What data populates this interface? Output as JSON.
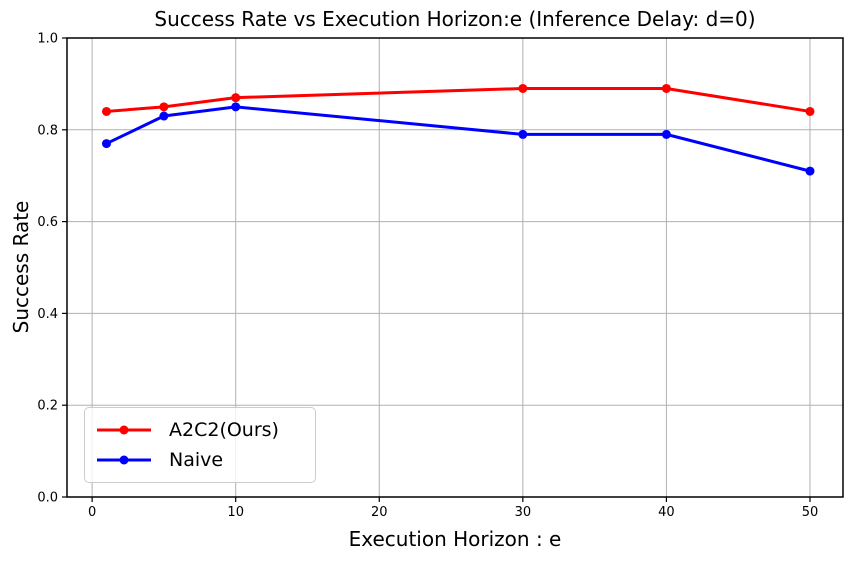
{
  "chart_data": {
    "type": "line",
    "title": "Success Rate vs Execution Horizon:e (Inference Delay: d=0)",
    "xlabel": "Execution Horizon : e",
    "ylabel": "Success Rate",
    "x": [
      1,
      5,
      10,
      30,
      40,
      50
    ],
    "series": [
      {
        "name": "A2C2(Ours)",
        "color": "#ff0000",
        "values": [
          0.84,
          0.85,
          0.87,
          0.89,
          0.89,
          0.84
        ]
      },
      {
        "name": "Naive",
        "color": "#0000ff",
        "values": [
          0.77,
          0.83,
          0.85,
          0.79,
          0.79,
          0.71
        ]
      }
    ],
    "xticks": [
      "0",
      "10",
      "20",
      "30",
      "40",
      "50"
    ],
    "yticks": [
      "0.0",
      "0.2",
      "0.4",
      "0.6",
      "0.8",
      "1.0"
    ],
    "xlim": [
      -1.75,
      52.3
    ],
    "ylim": [
      0.0,
      1.0
    ],
    "grid": true,
    "legend_position": "lower left",
    "marker": "circle",
    "colors": {
      "grid": "#b0b0b0",
      "spine": "#000000",
      "text": "#000000",
      "legend_border": "#cccccc",
      "background": "#ffffff"
    }
  }
}
